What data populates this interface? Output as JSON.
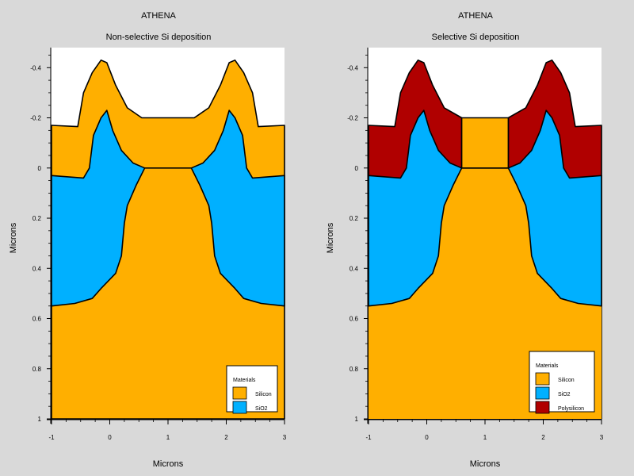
{
  "colors": {
    "background": "#d9d9d9",
    "plot_bg": "#ffffff",
    "Silicon": "#ffaf00",
    "SiO2": "#00b0ff",
    "Polysilicon": "#b00000"
  },
  "chart_data": [
    {
      "type": "area",
      "header": "ATHENA",
      "title": "Non-selective Si deposition",
      "xlabel": "Microns",
      "ylabel": "Microns",
      "xlim": [
        -1,
        3
      ],
      "ylim": [
        -0.48,
        1.0
      ],
      "y_inverted": true,
      "x_ticks": [
        "-1",
        "0",
        "1",
        "2",
        "3"
      ],
      "y_ticks": [
        "-0.4",
        "-0.2",
        "0",
        "0.2",
        "0.4",
        "0.6",
        "0.8",
        "1"
      ],
      "legend": {
        "title": "Materials",
        "position": "bottom-right",
        "entries": [
          "Silicon",
          "SiO2"
        ]
      },
      "series": [
        {
          "name": "Silicon",
          "surface": [
            [
              -1,
              -0.17
            ],
            [
              -0.55,
              -0.165
            ],
            [
              -0.45,
              -0.3
            ],
            [
              -0.3,
              -0.38
            ],
            [
              -0.15,
              -0.43
            ],
            [
              -0.05,
              -0.42
            ],
            [
              0.1,
              -0.33
            ],
            [
              0.3,
              -0.24
            ],
            [
              0.55,
              -0.2
            ],
            [
              1.0,
              -0.2
            ],
            [
              1.45,
              -0.2
            ],
            [
              1.7,
              -0.24
            ],
            [
              1.9,
              -0.33
            ],
            [
              2.05,
              -0.42
            ],
            [
              2.15,
              -0.43
            ],
            [
              2.3,
              -0.38
            ],
            [
              2.45,
              -0.3
            ],
            [
              2.55,
              -0.165
            ],
            [
              3,
              -0.17
            ]
          ]
        },
        {
          "name": "SiO2",
          "top": [
            [
              -1,
              0.03
            ],
            [
              -0.45,
              0.04
            ],
            [
              -0.35,
              0.0
            ],
            [
              -0.28,
              -0.13
            ],
            [
              -0.15,
              -0.2
            ],
            [
              -0.05,
              -0.23
            ],
            [
              0.05,
              -0.15
            ],
            [
              0.2,
              -0.07
            ],
            [
              0.4,
              -0.02
            ],
            [
              0.6,
              0.0
            ],
            [
              1.4,
              0.0
            ],
            [
              1.6,
              -0.02
            ],
            [
              1.8,
              -0.07
            ],
            [
              1.95,
              -0.15
            ],
            [
              2.05,
              -0.23
            ],
            [
              2.15,
              -0.2
            ],
            [
              2.28,
              -0.13
            ],
            [
              2.35,
              0.0
            ],
            [
              2.45,
              0.04
            ],
            [
              3,
              0.03
            ]
          ],
          "bottom": [
            [
              -1,
              0.55
            ],
            [
              -0.6,
              0.54
            ],
            [
              -0.3,
              0.52
            ],
            [
              -0.15,
              0.48
            ],
            [
              0.1,
              0.42
            ],
            [
              0.2,
              0.35
            ],
            [
              0.25,
              0.22
            ],
            [
              0.3,
              0.15
            ],
            [
              0.45,
              0.07
            ],
            [
              0.6,
              0.0
            ],
            [
              1.4,
              0.0
            ],
            [
              1.55,
              0.07
            ],
            [
              1.7,
              0.15
            ],
            [
              1.75,
              0.22
            ],
            [
              1.8,
              0.35
            ],
            [
              1.9,
              0.42
            ],
            [
              2.15,
              0.48
            ],
            [
              2.3,
              0.52
            ],
            [
              2.6,
              0.54
            ],
            [
              3,
              0.55
            ]
          ]
        }
      ]
    },
    {
      "type": "area",
      "header": "ATHENA",
      "title": "Selective Si deposition",
      "xlabel": "Microns",
      "ylabel": "Microns",
      "xlim": [
        -1,
        3
      ],
      "ylim": [
        -0.48,
        1.0
      ],
      "y_inverted": true,
      "x_ticks": [
        "-1",
        "0",
        "1",
        "2",
        "3"
      ],
      "y_ticks": [
        "-0.4",
        "-0.2",
        "0",
        "0.2",
        "0.4",
        "0.6",
        "0.8",
        "1"
      ],
      "legend": {
        "title": "Materials",
        "position": "bottom-right",
        "entries": [
          "Silicon",
          "SiO2",
          "Polysilicon"
        ]
      },
      "series": [
        {
          "name": "Polysilicon",
          "surface": [
            [
              -1,
              -0.17
            ],
            [
              -0.55,
              -0.165
            ],
            [
              -0.45,
              -0.3
            ],
            [
              -0.3,
              -0.38
            ],
            [
              -0.15,
              -0.43
            ],
            [
              -0.05,
              -0.42
            ],
            [
              0.1,
              -0.33
            ],
            [
              0.3,
              -0.24
            ],
            [
              0.6,
              -0.2
            ],
            [
              0.6,
              0.0
            ],
            [
              1.4,
              0.0
            ],
            [
              1.4,
              -0.2
            ],
            [
              1.7,
              -0.24
            ],
            [
              1.9,
              -0.33
            ],
            [
              2.05,
              -0.42
            ],
            [
              2.15,
              -0.43
            ],
            [
              2.3,
              -0.38
            ],
            [
              2.45,
              -0.3
            ],
            [
              2.55,
              -0.165
            ],
            [
              3,
              -0.17
            ]
          ]
        },
        {
          "name": "SiO2",
          "top": [
            [
              -1,
              0.03
            ],
            [
              -0.45,
              0.04
            ],
            [
              -0.35,
              0.0
            ],
            [
              -0.28,
              -0.13
            ],
            [
              -0.15,
              -0.2
            ],
            [
              -0.05,
              -0.23
            ],
            [
              0.05,
              -0.15
            ],
            [
              0.2,
              -0.07
            ],
            [
              0.4,
              -0.02
            ],
            [
              0.6,
              0.0
            ],
            [
              1.4,
              0.0
            ],
            [
              1.6,
              -0.02
            ],
            [
              1.8,
              -0.07
            ],
            [
              1.95,
              -0.15
            ],
            [
              2.05,
              -0.23
            ],
            [
              2.15,
              -0.2
            ],
            [
              2.28,
              -0.13
            ],
            [
              2.35,
              0.0
            ],
            [
              2.45,
              0.04
            ],
            [
              3,
              0.03
            ]
          ],
          "bottom": [
            [
              -1,
              0.55
            ],
            [
              -0.6,
              0.54
            ],
            [
              -0.3,
              0.52
            ],
            [
              -0.15,
              0.48
            ],
            [
              0.1,
              0.42
            ],
            [
              0.2,
              0.35
            ],
            [
              0.25,
              0.22
            ],
            [
              0.3,
              0.15
            ],
            [
              0.45,
              0.07
            ],
            [
              0.6,
              0.0
            ],
            [
              1.4,
              0.0
            ],
            [
              1.55,
              0.07
            ],
            [
              1.7,
              0.15
            ],
            [
              1.75,
              0.22
            ],
            [
              1.8,
              0.35
            ],
            [
              1.9,
              0.42
            ],
            [
              2.15,
              0.48
            ],
            [
              2.3,
              0.52
            ],
            [
              2.6,
              0.54
            ],
            [
              3,
              0.55
            ]
          ]
        },
        {
          "name": "Silicon",
          "plug": [
            [
              0.6,
              -0.2
            ],
            [
              1.4,
              -0.2
            ]
          ]
        }
      ]
    }
  ]
}
